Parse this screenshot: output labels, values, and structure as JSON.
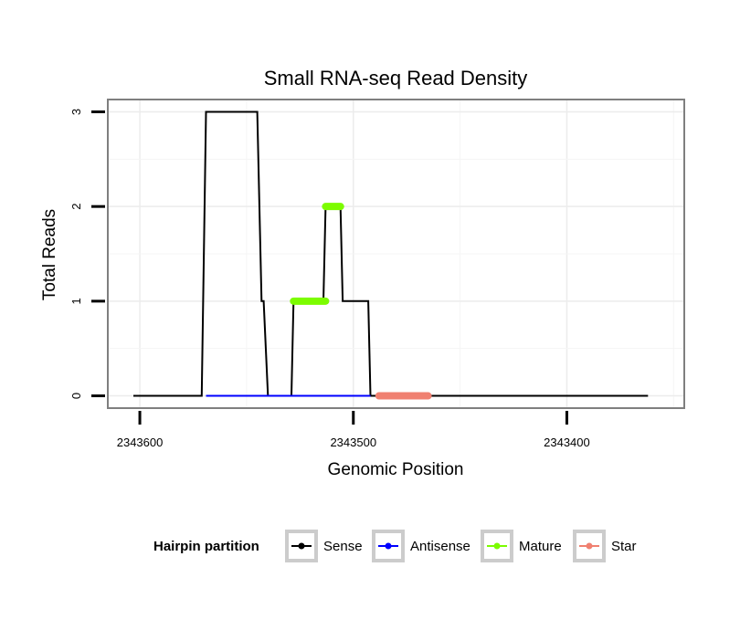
{
  "chart_data": {
    "type": "line",
    "title": "Small RNA-seq Read Density",
    "xlabel": "Genomic Position",
    "ylabel": "Total Reads",
    "x_reversed": true,
    "xlim": [
      2343615,
      2343345
    ],
    "ylim": [
      -0.13,
      3.13
    ],
    "x_ticks": [
      2343600,
      2343500,
      2343400
    ],
    "x_tick_labels": [
      "2343600",
      "2343500",
      "2343400"
    ],
    "y_ticks": [
      0,
      1,
      2,
      3
    ],
    "y_tick_labels": [
      "0",
      "1",
      "2",
      "3"
    ],
    "grid": true,
    "legend": {
      "title": "Hairpin partition",
      "position": "bottom",
      "entries": [
        {
          "label": "Sense",
          "color": "#000000"
        },
        {
          "label": "Antisense",
          "color": "#0000ff"
        },
        {
          "label": "Mature",
          "color": "#7cfc00"
        },
        {
          "label": "Star",
          "color": "#f08070"
        }
      ]
    },
    "series": [
      {
        "name": "Sense",
        "color": "#000000",
        "points": [
          [
            2343603,
            0
          ],
          [
            2343571,
            0
          ],
          [
            2343569,
            3
          ],
          [
            2343545,
            3
          ],
          [
            2343543,
            1
          ],
          [
            2343542,
            1
          ],
          [
            2343540,
            0
          ],
          [
            2343529,
            0
          ],
          [
            2343528,
            1
          ],
          [
            2343513,
            1
          ],
          [
            2343514,
            1
          ],
          [
            2343513,
            2
          ],
          [
            2343506,
            2
          ],
          [
            2343505,
            1
          ],
          [
            2343493,
            1
          ],
          [
            2343492,
            0
          ],
          [
            2343362,
            0
          ]
        ]
      },
      {
        "name": "Antisense",
        "color": "#0000ff",
        "points": [
          [
            2343569,
            0
          ],
          [
            2343492,
            0
          ]
        ]
      },
      {
        "name": "Mature",
        "color": "#7cfc00",
        "thick": true,
        "segments": [
          [
            [
              2343528,
              1
            ],
            [
              2343513,
              1
            ]
          ],
          [
            [
              2343513,
              2
            ],
            [
              2343506,
              2
            ]
          ]
        ]
      },
      {
        "name": "Star",
        "color": "#f08070",
        "thick": true,
        "segments": [
          [
            [
              2343488,
              0
            ],
            [
              2343465,
              0
            ]
          ]
        ]
      }
    ]
  }
}
